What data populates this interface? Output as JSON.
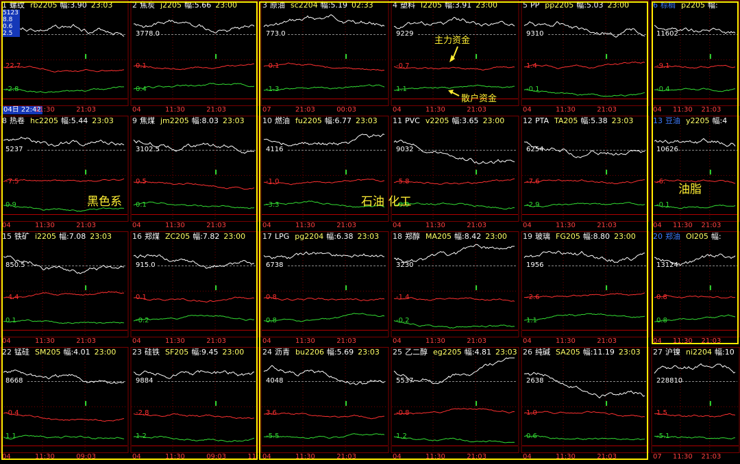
{
  "panels": [
    {
      "idx": "1",
      "name": "螺纹",
      "code": "rb2205",
      "amp": "幅:3.90",
      "time": "23:03",
      "price": "582",
      "red": "22.7",
      "green": "-2.8",
      "date": "04日 22:42",
      "date_selected": true,
      "ticks": [
        "11:30",
        "21:03"
      ],
      "mini_list": [
        "5123",
        "8.8",
        "0.6",
        "2.5"
      ]
    },
    {
      "idx": "2",
      "name": "焦炭",
      "code": "j2205",
      "amp": "幅:5.66",
      "time": "23:00",
      "price": "3778.0",
      "red": "0.1",
      "green": "0.4",
      "date": "04",
      "ticks": [
        "11:30",
        "21:03"
      ]
    },
    {
      "idx": "3",
      "name": "原油",
      "code": "sc2204",
      "amp": "幅:5.19",
      "time": "02:33",
      "price": "773.0",
      "red": "-0.1",
      "green": "-1.3",
      "date": "07",
      "ticks": [
        "21:03",
        "00:03"
      ]
    },
    {
      "idx": "4",
      "name": "塑料",
      "code": "l2205",
      "amp": "幅:3.91",
      "time": "23:00",
      "price": "9229",
      "red": "-0.7",
      "green": "1.1",
      "date": "04",
      "ticks": [
        "11:30",
        "21:03"
      ]
    },
    {
      "idx": "5",
      "name": "PP",
      "code": "pp2205",
      "amp": "幅:5.03",
      "time": "23:00",
      "price": "9310",
      "red": "1.4",
      "green": "-0.1",
      "date": "04",
      "ticks": [
        "11:30",
        "21:03"
      ]
    },
    {
      "idx": "6",
      "name": "棕榈",
      "code": "p2205",
      "amp": "幅:",
      "time": "",
      "price": "11602",
      "red": "-9.1",
      "green": "-0.4",
      "date": "04",
      "ticks": [
        "11:30",
        "21:03"
      ],
      "blue": true
    },
    {
      "idx": "8",
      "name": "热卷",
      "code": "hc2205",
      "amp": "幅:5.44",
      "time": "23:03",
      "price": "5237",
      "red": "-7.5",
      "green": "0.9",
      "date": "04",
      "ticks": [
        "11:30",
        "21:03"
      ]
    },
    {
      "idx": "9",
      "name": "焦煤",
      "code": "jm2205",
      "amp": "幅:8.03",
      "time": "23:03",
      "price": "3102.5",
      "red": "0.5",
      "green": "0.1",
      "date": "04",
      "ticks": [
        "11:30",
        "21:03"
      ]
    },
    {
      "idx": "10",
      "name": "燃油",
      "code": "fu2205",
      "amp": "幅:6.77",
      "time": "23:03",
      "price": "4116",
      "red": "-1.0",
      "green": "-3.3",
      "date": "04",
      "ticks": [
        "11:30",
        "21:03"
      ]
    },
    {
      "idx": "11",
      "name": "PVC",
      "code": "v2205",
      "amp": "幅:3.65",
      "time": "23:00",
      "price": "9032",
      "red": "-5.8",
      "green": "-0.9",
      "date": "04",
      "ticks": [
        "11:30",
        "21:03"
      ]
    },
    {
      "idx": "12",
      "name": "PTA",
      "code": "TA205",
      "amp": "幅:5.38",
      "time": "23:03",
      "price": "6254",
      "red": "-7.6",
      "green": "-2.9",
      "date": "04",
      "ticks": [
        "11:30",
        "21:03"
      ]
    },
    {
      "idx": "13",
      "name": "豆油",
      "code": "y2205",
      "amp": "幅:4",
      "time": "",
      "price": "10626",
      "red": "-6.",
      "green": "-0.1",
      "date": "04",
      "ticks": [
        "11:30",
        "21:03"
      ],
      "blue": true
    },
    {
      "idx": "15",
      "name": "铁矿",
      "code": "i2205",
      "amp": "幅:7.08",
      "time": "23:03",
      "price": "850.5",
      "red": "-4.4",
      "green": "0.1",
      "date": "04",
      "ticks": [
        "11:30",
        "21:03"
      ]
    },
    {
      "idx": "16",
      "name": "郑煤",
      "code": "ZC205",
      "amp": "幅:7.82",
      "time": "23:00",
      "price": "915.0",
      "red": "0.1",
      "green": "-0.2",
      "date": "04",
      "ticks": [
        "11:30",
        "21:03"
      ]
    },
    {
      "idx": "17",
      "name": "LPG",
      "code": "pg2204",
      "amp": "幅:6.38",
      "time": "23:03",
      "price": "6738",
      "red": "0.8",
      "green": "0.8",
      "date": "04",
      "ticks": [
        "11:30",
        "21:03"
      ]
    },
    {
      "idx": "18",
      "name": "郑醇",
      "code": "MA205",
      "amp": "幅:8.42",
      "time": "23:00",
      "price": "3230",
      "red": "-1.4",
      "green": "-0.2",
      "date": "04",
      "ticks": [
        "11:30",
        "21:03"
      ]
    },
    {
      "idx": "19",
      "name": "玻璃",
      "code": "FG205",
      "amp": "幅:8.80",
      "time": "23:00",
      "price": "1956",
      "red": "-2.6",
      "green": "1.1",
      "date": "04",
      "ticks": [
        "11:30",
        "21:03"
      ]
    },
    {
      "idx": "20",
      "name": "郑油",
      "code": "OI205",
      "amp": "幅:",
      "time": "",
      "price": "13124",
      "red": "0.8",
      "green": "0.8",
      "date": "04",
      "ticks": [
        "11:30",
        "21:03"
      ],
      "blue": true
    },
    {
      "idx": "22",
      "name": "锰硅",
      "code": "SM205",
      "amp": "幅:4.01",
      "time": "23:00",
      "price": "8668",
      "red": "-0.4",
      "green": "1.1",
      "date": "04",
      "ticks": [
        "11:30",
        "09:03"
      ]
    },
    {
      "idx": "23",
      "name": "硅铁",
      "code": "SF205",
      "amp": "幅:9.45",
      "time": "23:00",
      "price": "9884",
      "red": "-2.8",
      "green": "1.2",
      "date": "04",
      "ticks": [
        "11:30",
        "09:03",
        "11:30"
      ]
    },
    {
      "idx": "24",
      "name": "沥青",
      "code": "bu2206",
      "amp": "幅:5.69",
      "time": "23:03",
      "price": "4048",
      "red": "3.6",
      "green": "-5.5",
      "date": "04",
      "ticks": [
        "11:30",
        "21:03"
      ]
    },
    {
      "idx": "25",
      "name": "乙二醇",
      "code": "eg2205",
      "amp": "幅:4.81",
      "time": "23:03",
      "price": "5537",
      "red": "-0.8",
      "green": "1.2",
      "date": "04",
      "ticks": [
        "11:30",
        "21:03"
      ]
    },
    {
      "idx": "26",
      "name": "纯碱",
      "code": "SA205",
      "amp": "幅:11.19",
      "time": "23:03",
      "price": "2638",
      "red": "1.0",
      "green": "0.6",
      "date": "04",
      "ticks": [
        "11:30",
        "21:03"
      ]
    },
    {
      "idx": "27",
      "name": "沪镍",
      "code": "ni2204",
      "amp": "幅:10",
      "time": "",
      "price": "228810",
      "red": "1.5",
      "green": "-5.1",
      "date": "07",
      "ticks": [
        "11:30",
        "21:03"
      ]
    }
  ],
  "group_labels": {
    "black": "黑色系",
    "petro": "石油 化工",
    "oil": "油脂"
  },
  "annotations": {
    "main_fund": "主力资金",
    "retail_fund": "散户资金"
  },
  "colors": {
    "bg": "#000000",
    "grid": "#7a0000",
    "price": "#ffffff",
    "main": "#ff3030",
    "retail": "#33dd33",
    "highlight": "#ffee00",
    "label": "#ffff66"
  }
}
